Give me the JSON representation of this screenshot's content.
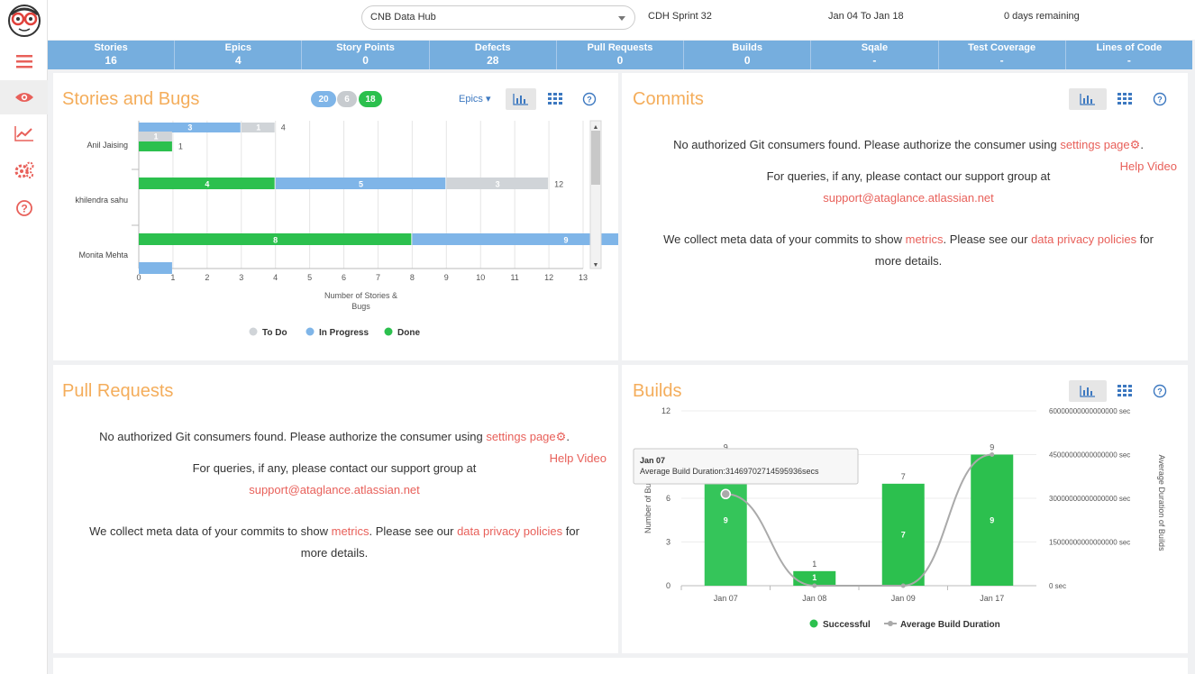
{
  "topbar": {
    "project_select": "CNB Data Hub",
    "sprint": "CDH Sprint 32",
    "date_range": "Jan 04 To Jan 18",
    "remaining": "0 days remaining"
  },
  "metrics": [
    {
      "label": "Stories",
      "value": "16"
    },
    {
      "label": "Epics",
      "value": "4"
    },
    {
      "label": "Story Points",
      "value": "0"
    },
    {
      "label": "Defects",
      "value": "28"
    },
    {
      "label": "Pull Requests",
      "value": "0"
    },
    {
      "label": "Builds",
      "value": "0"
    },
    {
      "label": "Sqale",
      "value": "-"
    },
    {
      "label": "Test Coverage",
      "value": "-"
    },
    {
      "label": "Lines of Code",
      "value": "-"
    }
  ],
  "icons": {
    "logo": "monkey-glasses-logo",
    "menu": "menu-icon",
    "overview": "eye-icon",
    "trends": "line-chart-icon",
    "settings": "gears-icon",
    "help": "help-icon",
    "chart_view": "bar-chart-icon",
    "table_view": "grid-icon",
    "help_question": "question-circle-icon"
  },
  "colors": {
    "accent_orange": "#f4ad5b",
    "metric_bar": "#76aede",
    "todo": "#d0d4d8",
    "in_progress": "#7fb5e8",
    "done": "#2cc04e",
    "link": "#e8605a"
  },
  "stories_panel": {
    "title": "Stories and Bugs",
    "pills": [
      "20",
      "6",
      "18"
    ],
    "epics_dropdown": "Epics"
  },
  "commits_panel": {
    "title": "Commits",
    "msg_prefix": "No authorized Git consumers found. Please authorize the consumer using",
    "settings_link": "settings page",
    "help_video": "Help Video",
    "queries_text": "For queries, if any, please contact our support group at",
    "support_email": "support@ataglance.atlassian.net",
    "meta_prefix": "We collect meta data of your commits to show",
    "metrics_link": "metrics",
    "meta_middle": ". Please see our",
    "privacy_link": "data privacy policies",
    "meta_suffix": "for",
    "more_details": "more details."
  },
  "pull_requests_panel": {
    "title": "Pull Requests",
    "msg_prefix": "No authorized Git consumers found. Please authorize the consumer using",
    "settings_link": "settings page",
    "help_video": "Help Video",
    "queries_text": "For queries, if any, please contact our support group at",
    "support_email": "support@ataglance.atlassian.net",
    "meta_prefix": "We collect meta data of your commits to show",
    "metrics_link": "metrics",
    "meta_middle": ". Please see our",
    "privacy_link": "data privacy policies",
    "meta_suffix": "for",
    "more_details": "more details."
  },
  "builds_panel": {
    "title": "Builds"
  },
  "chart_data": [
    {
      "type": "bar",
      "orientation": "horizontal",
      "stacked": true,
      "xlabel": "Number of Stories & Bugs",
      "xlim": [
        0,
        13
      ],
      "x_ticks": [
        "0",
        "1",
        "2",
        "3",
        "4",
        "5",
        "6",
        "7",
        "8",
        "9",
        "10",
        "11",
        "12",
        "13"
      ],
      "legend": [
        "To Do",
        "In Progress",
        "Done"
      ],
      "legend_placement": "bottom",
      "grid": true,
      "groups": [
        {
          "name": "Anil Jaising",
          "rows": [
            {
              "segments": [
                {
                  "series": "In Progress",
                  "value": 3,
                  "label": "3"
                },
                {
                  "series": "To Do",
                  "value": 1,
                  "label": "1"
                }
              ],
              "total": "4"
            },
            {
              "segments": [
                {
                  "series": "To Do",
                  "value": 1,
                  "label": "1"
                }
              ],
              "total": ""
            },
            {
              "segments": [
                {
                  "series": "Done",
                  "value": 1,
                  "label": ""
                }
              ],
              "total": "1"
            }
          ]
        },
        {
          "name": "khilendra sahu",
          "rows": [
            {
              "segments": [
                {
                  "series": "Done",
                  "value": 4,
                  "label": "4"
                },
                {
                  "series": "In Progress",
                  "value": 5,
                  "label": "5"
                },
                {
                  "series": "To Do",
                  "value": 3,
                  "label": "3"
                }
              ],
              "total": "12"
            }
          ]
        },
        {
          "name": "Monita Mehta",
          "rows": [
            {
              "segments": [
                {
                  "series": "Done",
                  "value": 8,
                  "label": "8"
                },
                {
                  "series": "In Progress",
                  "value": 9,
                  "label": "9"
                }
              ],
              "total": ""
            },
            {
              "segments": [
                {
                  "series": "In Progress",
                  "value": 1,
                  "label": ""
                }
              ],
              "total": ""
            }
          ]
        }
      ]
    },
    {
      "type": "bar",
      "categories": [
        "Jan 07",
        "Jan 08",
        "Jan 09",
        "Jan 17"
      ],
      "series": [
        {
          "name": "Successful",
          "type": "bar",
          "values": [
            9,
            1,
            7,
            9
          ]
        },
        {
          "name": "Average Build Duration",
          "type": "line",
          "axis": "right",
          "values": [
            31469702714595936,
            0,
            0,
            45000000000000000
          ]
        }
      ],
      "bar_top_labels": [
        "9",
        "1",
        "7",
        "9"
      ],
      "bar_inner_labels": [
        "9",
        "1",
        "7",
        "9"
      ],
      "ylabel": "Number of Builds",
      "y2label": "Average Duration of Builds",
      "ylim": [
        0,
        12
      ],
      "y_ticks": [
        "0",
        "3",
        "6",
        "9",
        "12"
      ],
      "y2lim": [
        0,
        60000000000000000
      ],
      "y2_ticks": [
        "0 sec",
        "15000000000000000 sec",
        "30000000000000000 sec",
        "45000000000000000 sec",
        "60000000000000000 sec"
      ],
      "legend": [
        "Successful",
        "Average Build Duration"
      ],
      "legend_placement": "bottom",
      "tooltip": {
        "title": "Jan 07",
        "text": "Average Build Duration:31469702714595936secs"
      }
    }
  ]
}
